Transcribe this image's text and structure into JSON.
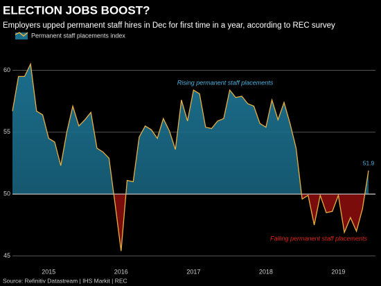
{
  "chart_data": {
    "type": "area",
    "title": "ELECTION JOBS BOOST?",
    "subtitle": "Employers upped permanent staff hires in Dec for first time in a year, according to REC survey",
    "source": "Source: Refinitiv Datastream | IHS Markit | REC",
    "baseline": 50,
    "annotations": [
      "Rising permanent staff placements",
      "Falling permanent staff placements"
    ],
    "annotation_colors": [
      "#4fb3e0",
      "#e0261c"
    ],
    "x": [
      2015.0,
      2015.083,
      2015.167,
      2015.25,
      2015.333,
      2015.417,
      2015.5,
      2015.583,
      2015.667,
      2015.75,
      2015.833,
      2015.917,
      2016.0,
      2016.083,
      2016.167,
      2016.25,
      2016.333,
      2016.417,
      2016.5,
      2016.583,
      2016.667,
      2016.75,
      2016.833,
      2016.917,
      2017.0,
      2017.083,
      2017.167,
      2017.25,
      2017.333,
      2017.417,
      2017.5,
      2017.583,
      2017.667,
      2017.75,
      2017.833,
      2017.917,
      2018.0,
      2018.083,
      2018.167,
      2018.25,
      2018.333,
      2018.417,
      2018.5,
      2018.583,
      2018.667,
      2018.75,
      2018.833,
      2018.917,
      2019.0,
      2019.083,
      2019.167,
      2019.25,
      2019.333,
      2019.417,
      2019.5,
      2019.583,
      2019.667,
      2019.75,
      2019.833,
      2019.917
    ],
    "series": [
      {
        "name": "Permanent staff placements index",
        "color": "#e8b040",
        "fill_above": "#1b6e8c",
        "fill_below": "#7a0c0c",
        "values": [
          56.7,
          59.5,
          59.5,
          60.5,
          56.7,
          56.4,
          54.5,
          54.2,
          52.3,
          55.0,
          57.1,
          55.5,
          56.0,
          56.6,
          53.7,
          53.4,
          52.9,
          49.2,
          45.4,
          51.1,
          51.0,
          54.6,
          55.5,
          55.2,
          54.5,
          56.1,
          55.1,
          53.6,
          57.6,
          55.9,
          58.4,
          58.1,
          55.4,
          55.3,
          55.9,
          56.1,
          58.4,
          57.8,
          57.9,
          57.3,
          57.1,
          55.7,
          55.4,
          57.6,
          56.0,
          57.4,
          55.7,
          53.7,
          49.6,
          49.9,
          47.5,
          49.9,
          48.5,
          48.6,
          49.9,
          46.9,
          48.1,
          47.0,
          48.8,
          51.9
        ],
        "value_labels": [
          null,
          null,
          null,
          null,
          null,
          null,
          null,
          null,
          null,
          null,
          null,
          null,
          null,
          null,
          null,
          null,
          null,
          null,
          null,
          null,
          null,
          null,
          null,
          null,
          null,
          null,
          null,
          null,
          null,
          null,
          null,
          null,
          null,
          null,
          null,
          null,
          null,
          null,
          null,
          null,
          null,
          null,
          null,
          null,
          null,
          null,
          null,
          null,
          null,
          null,
          null,
          null,
          null,
          null,
          null,
          null,
          null,
          null,
          null,
          "51.9"
        ]
      }
    ],
    "xlim": [
      2015.0,
      2019.917
    ],
    "xticks": [
      2015,
      2016,
      2017,
      2018,
      2019
    ],
    "ylim": [
      44.7,
      61.2
    ],
    "yticks": [
      45,
      50,
      55,
      60
    ],
    "grid": true
  }
}
